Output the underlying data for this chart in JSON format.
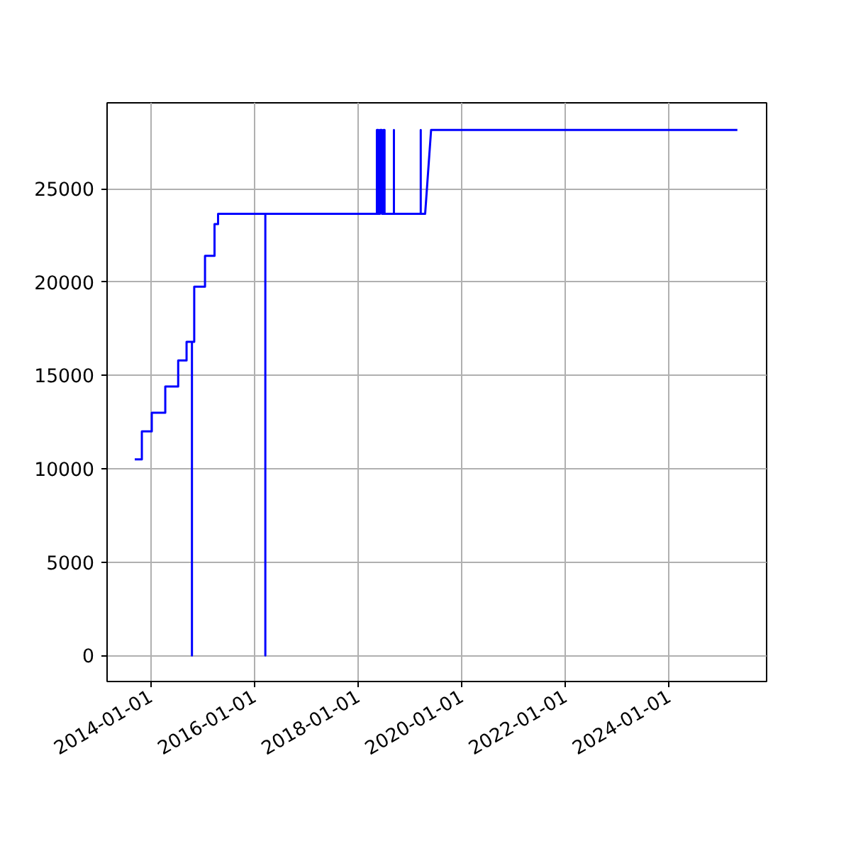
{
  "chart_data": {
    "type": "line",
    "x": [
      "2013-09-12",
      "2013-11-01",
      "2013-11-01",
      "2014-01-10",
      "2014-01-10",
      "2014-04-15",
      "2014-04-15",
      "2014-07-15",
      "2014-07-15",
      "2014-09-12",
      "2014-09-12",
      "2014-10-20",
      "2014-10-20",
      "2014-10-20",
      "2014-11-05",
      "2014-11-05",
      "2015-01-20",
      "2015-01-20",
      "2015-03-28",
      "2015-03-28",
      "2015-04-22",
      "2015-04-22",
      "2016-03-20",
      "2016-03-20",
      "2016-03-20",
      "2018-05-15",
      "2018-05-15",
      "2018-05-25",
      "2018-05-25",
      "2018-06-05",
      "2018-06-05",
      "2018-06-20",
      "2018-06-20",
      "2018-07-01",
      "2018-07-01",
      "2018-07-08",
      "2018-07-08",
      "2018-09-12",
      "2018-09-12",
      "2018-09-12",
      "2019-03-20",
      "2019-03-20",
      "2019-03-20",
      "2019-04-20",
      "2019-06-01",
      "2025-04-28"
    ],
    "series": [
      {
        "color": "#0000ff",
        "values": [
          10500,
          10500,
          12000,
          12000,
          13000,
          13000,
          14400,
          14400,
          15800,
          15800,
          16800,
          16800,
          0,
          16800,
          16800,
          19750,
          19750,
          21400,
          21400,
          23100,
          23100,
          23650,
          23650,
          0,
          23650,
          23650,
          28150,
          28150,
          23650,
          23650,
          28150,
          28150,
          23650,
          23650,
          28150,
          28150,
          23650,
          23650,
          28150,
          23650,
          23650,
          28150,
          23650,
          23650,
          28150,
          28150
        ]
      }
    ],
    "xlim": [
      "2013-03-01",
      "2025-11-20"
    ],
    "xticks": [
      "2014-01-01",
      "2016-01-01",
      "2018-01-01",
      "2020-01-01",
      "2022-01-01",
      "2024-01-01"
    ],
    "ylim": [
      -1400,
      29600
    ],
    "yticks": [
      0,
      5000,
      10000,
      15000,
      20000,
      25000
    ],
    "grid": true,
    "line_style": "solid"
  }
}
